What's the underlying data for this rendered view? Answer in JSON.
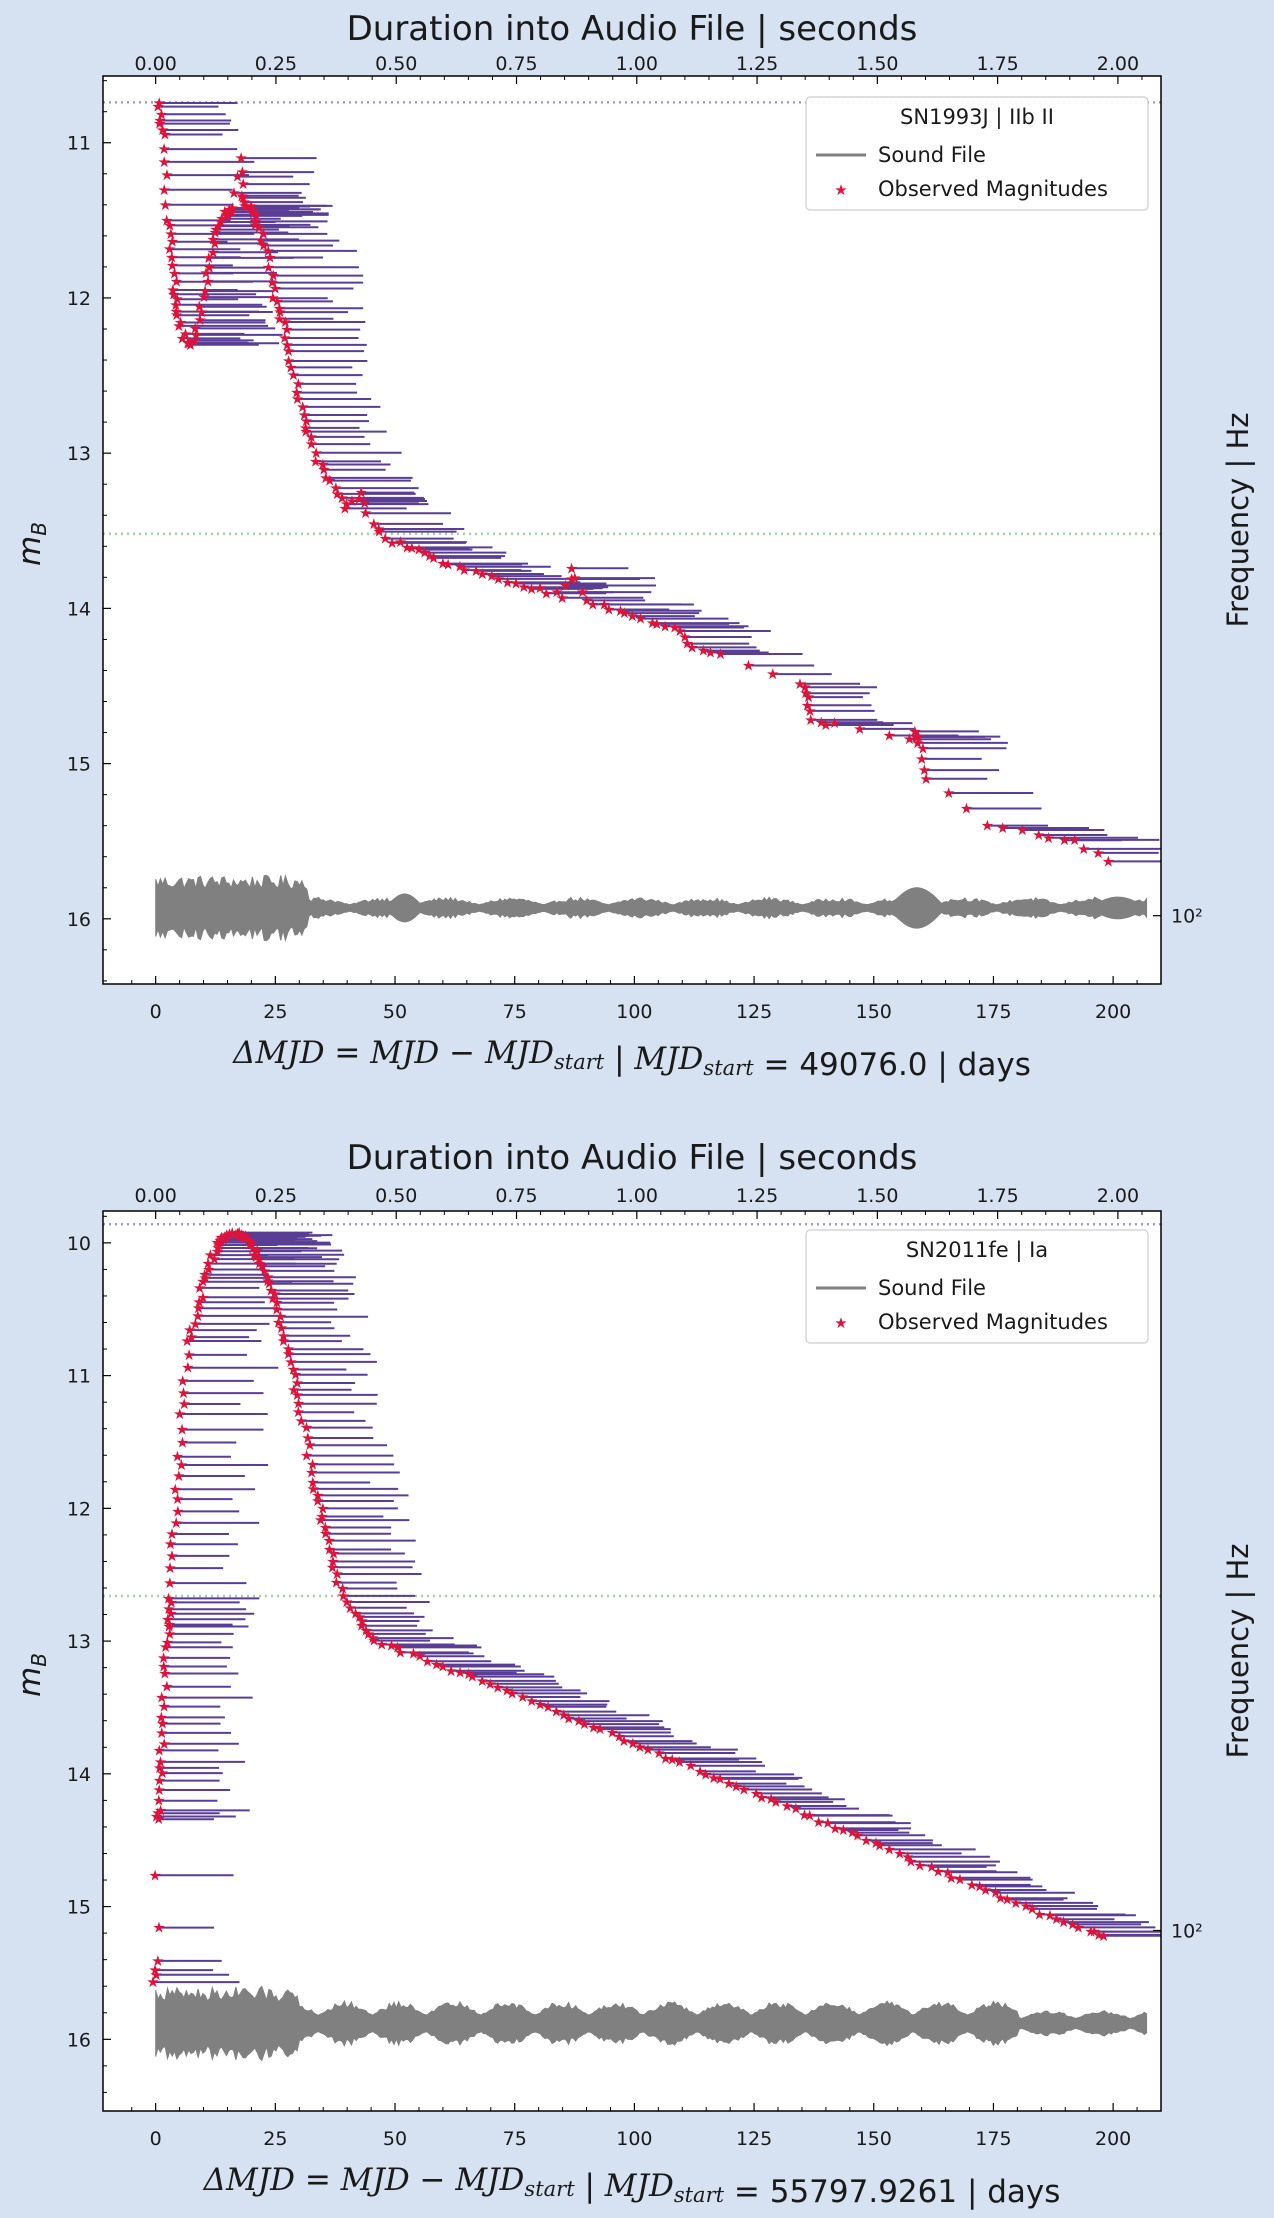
{
  "chart_data": [
    {
      "type": "scatter",
      "title": "Duration into Audio File | seconds",
      "xlabel": "ΔMJD = MJD − MJD_start  |  MJD_start = 49076.0 | days",
      "xlabel_parts": {
        "start": "49076.0",
        "units": "| days"
      },
      "ylabel": "m_B",
      "ylabel_right": "Frequency | Hz",
      "right_tick": "10²",
      "xlim": [
        -11,
        210
      ],
      "ylim": [
        16.42,
        10.57
      ],
      "x_ticks": [
        0,
        25,
        50,
        75,
        100,
        125,
        150,
        175,
        200
      ],
      "y_ticks": [
        11,
        12,
        13,
        14,
        15,
        16
      ],
      "top_ticks": [
        "0.00",
        "0.25",
        "0.50",
        "0.75",
        "1.00",
        "1.25",
        "1.50",
        "1.75",
        "2.00"
      ],
      "grid": false,
      "legend": {
        "placement": "top-right",
        "title": "SN1993J | IIb II",
        "entries": [
          "Sound File",
          "Observed Magnitudes"
        ]
      },
      "reference_lines": [
        {
          "y": 10.74,
          "color": "#9b9bdd",
          "style": "dotted"
        },
        {
          "y": 13.52,
          "color": "#9fd39f",
          "style": "dotted"
        }
      ],
      "sound_file_y": 15.93,
      "colors": {
        "points": "#dc143c",
        "segments": "#5a3e96",
        "sound": "#808080"
      },
      "key_points": [
        [
          0.5,
          10.74
        ],
        [
          1,
          10.85
        ],
        [
          1.5,
          10.95
        ],
        [
          2,
          11.22
        ],
        [
          2.5,
          11.5
        ],
        [
          3,
          11.63
        ],
        [
          3.5,
          11.8
        ],
        [
          4,
          11.95
        ],
        [
          4.5,
          12.05
        ],
        [
          5,
          12.15
        ],
        [
          6,
          12.27
        ],
        [
          7,
          12.3
        ],
        [
          8,
          12.25
        ],
        [
          9,
          12.1
        ],
        [
          10,
          11.95
        ],
        [
          11,
          11.8
        ],
        [
          12,
          11.65
        ],
        [
          13,
          11.55
        ],
        [
          14,
          11.48
        ],
        [
          15,
          11.45
        ],
        [
          16.5,
          11.42
        ],
        [
          17.5,
          11.1
        ],
        [
          18,
          11.35
        ],
        [
          19,
          11.4
        ],
        [
          20,
          11.42
        ],
        [
          21,
          11.5
        ],
        [
          22,
          11.58
        ],
        [
          23,
          11.7
        ],
        [
          24,
          11.85
        ],
        [
          25,
          12.0
        ],
        [
          26,
          12.1
        ],
        [
          27,
          12.2
        ],
        [
          28,
          12.35
        ],
        [
          29,
          12.5
        ],
        [
          30,
          12.65
        ],
        [
          31,
          12.8
        ],
        [
          32,
          12.9
        ],
        [
          34,
          13.05
        ],
        [
          36,
          13.15
        ],
        [
          38,
          13.25
        ],
        [
          40,
          13.35
        ],
        [
          43,
          13.25
        ],
        [
          45,
          13.45
        ],
        [
          48,
          13.55
        ],
        [
          52,
          13.6
        ],
        [
          56,
          13.65
        ],
        [
          60,
          13.7
        ],
        [
          65,
          13.75
        ],
        [
          70,
          13.8
        ],
        [
          75,
          13.85
        ],
        [
          80,
          13.88
        ],
        [
          85,
          13.92
        ],
        [
          87,
          13.75
        ],
        [
          90,
          13.95
        ],
        [
          95,
          14.0
        ],
        [
          100,
          14.05
        ],
        [
          105,
          14.1
        ],
        [
          110,
          14.15
        ],
        [
          112,
          14.25
        ],
        [
          118,
          14.3
        ],
        [
          135,
          14.48
        ],
        [
          136,
          14.57
        ],
        [
          137,
          14.72
        ],
        [
          142,
          14.75
        ],
        [
          158,
          14.85
        ],
        [
          159,
          14.8
        ],
        [
          160,
          14.9
        ],
        [
          161,
          15.1
        ],
        [
          174,
          15.4
        ],
        [
          184,
          15.45
        ],
        [
          192,
          15.5
        ],
        [
          199,
          15.63
        ]
      ]
    },
    {
      "type": "scatter",
      "title": "Duration into Audio File | seconds",
      "xlabel": "ΔMJD = MJD − MJD_start  |  MJD_start = 55797.9261 | days",
      "xlabel_parts": {
        "start": "55797.9261",
        "units": "| days"
      },
      "ylabel": "m_B",
      "ylabel_right": "Frequency | Hz",
      "right_tick": "10²",
      "xlim": [
        -11,
        210
      ],
      "ylim": [
        16.54,
        9.76
      ],
      "x_ticks": [
        0,
        25,
        50,
        75,
        100,
        125,
        150,
        175,
        200
      ],
      "y_ticks": [
        10,
        11,
        12,
        13,
        14,
        15,
        16
      ],
      "top_ticks": [
        "0.00",
        "0.25",
        "0.50",
        "0.75",
        "1.00",
        "1.25",
        "1.50",
        "1.75",
        "2.00"
      ],
      "grid": false,
      "legend": {
        "placement": "top-right",
        "title": "SN2011fe | Ia",
        "entries": [
          "Sound File",
          "Observed Magnitudes"
        ]
      },
      "reference_lines": [
        {
          "y": 9.86,
          "color": "#9b9bdd",
          "style": "dotted"
        },
        {
          "y": 12.66,
          "color": "#9fd39f",
          "style": "dotted"
        }
      ],
      "sound_file_y": 15.88,
      "colors": {
        "points": "#dc143c",
        "segments": "#5a3e96",
        "sound": "#808080"
      },
      "key_points": [
        [
          0,
          15.42
        ],
        [
          0,
          15.57
        ],
        [
          0.5,
          14.35
        ],
        [
          0.8,
          14.28
        ],
        [
          1,
          14.05
        ],
        [
          1.2,
          13.9
        ],
        [
          1.5,
          13.7
        ],
        [
          1.8,
          13.5
        ],
        [
          2,
          13.25
        ],
        [
          2.2,
          13.05
        ],
        [
          2.5,
          12.9
        ],
        [
          2.7,
          12.8
        ],
        [
          3,
          12.68
        ],
        [
          3.5,
          12.35
        ],
        [
          4,
          12.1
        ],
        [
          4.5,
          11.85
        ],
        [
          5,
          11.6
        ],
        [
          5.5,
          11.3
        ],
        [
          6,
          11.05
        ],
        [
          7,
          10.75
        ],
        [
          8,
          10.6
        ],
        [
          9,
          10.45
        ],
        [
          10,
          10.3
        ],
        [
          11,
          10.2
        ],
        [
          12,
          10.1
        ],
        [
          13,
          10.02
        ],
        [
          14,
          9.97
        ],
        [
          15,
          9.95
        ],
        [
          16,
          9.93
        ],
        [
          17,
          9.93
        ],
        [
          18,
          9.95
        ],
        [
          19,
          9.98
        ],
        [
          20,
          10.02
        ],
        [
          21,
          10.08
        ],
        [
          22,
          10.15
        ],
        [
          23,
          10.25
        ],
        [
          24,
          10.35
        ],
        [
          25,
          10.45
        ],
        [
          26,
          10.6
        ],
        [
          27,
          10.75
        ],
        [
          28,
          10.9
        ],
        [
          29,
          11.05
        ],
        [
          30,
          11.2
        ],
        [
          31,
          11.4
        ],
        [
          32,
          11.6
        ],
        [
          33,
          11.8
        ],
        [
          34,
          11.95
        ],
        [
          35,
          12.1
        ],
        [
          36,
          12.25
        ],
        [
          37,
          12.4
        ],
        [
          38,
          12.55
        ],
        [
          40,
          12.7
        ],
        [
          42,
          12.82
        ],
        [
          44,
          12.92
        ],
        [
          46,
          13.0
        ],
        [
          50,
          13.05
        ],
        [
          55,
          13.12
        ],
        [
          60,
          13.2
        ],
        [
          65,
          13.25
        ],
        [
          70,
          13.32
        ],
        [
          75,
          13.4
        ],
        [
          80,
          13.48
        ],
        [
          85,
          13.55
        ],
        [
          90,
          13.62
        ],
        [
          95,
          13.7
        ],
        [
          100,
          13.78
        ],
        [
          105,
          13.85
        ],
        [
          110,
          13.92
        ],
        [
          115,
          14.0
        ],
        [
          120,
          14.07
        ],
        [
          125,
          14.15
        ],
        [
          130,
          14.22
        ],
        [
          135,
          14.3
        ],
        [
          140,
          14.38
        ],
        [
          145,
          14.45
        ],
        [
          150,
          14.52
        ],
        [
          155,
          14.6
        ],
        [
          160,
          14.68
        ],
        [
          165,
          14.75
        ],
        [
          170,
          14.83
        ],
        [
          175,
          14.9
        ],
        [
          180,
          14.98
        ],
        [
          185,
          15.05
        ],
        [
          190,
          15.12
        ],
        [
          195,
          15.18
        ],
        [
          198,
          15.22
        ]
      ]
    }
  ]
}
